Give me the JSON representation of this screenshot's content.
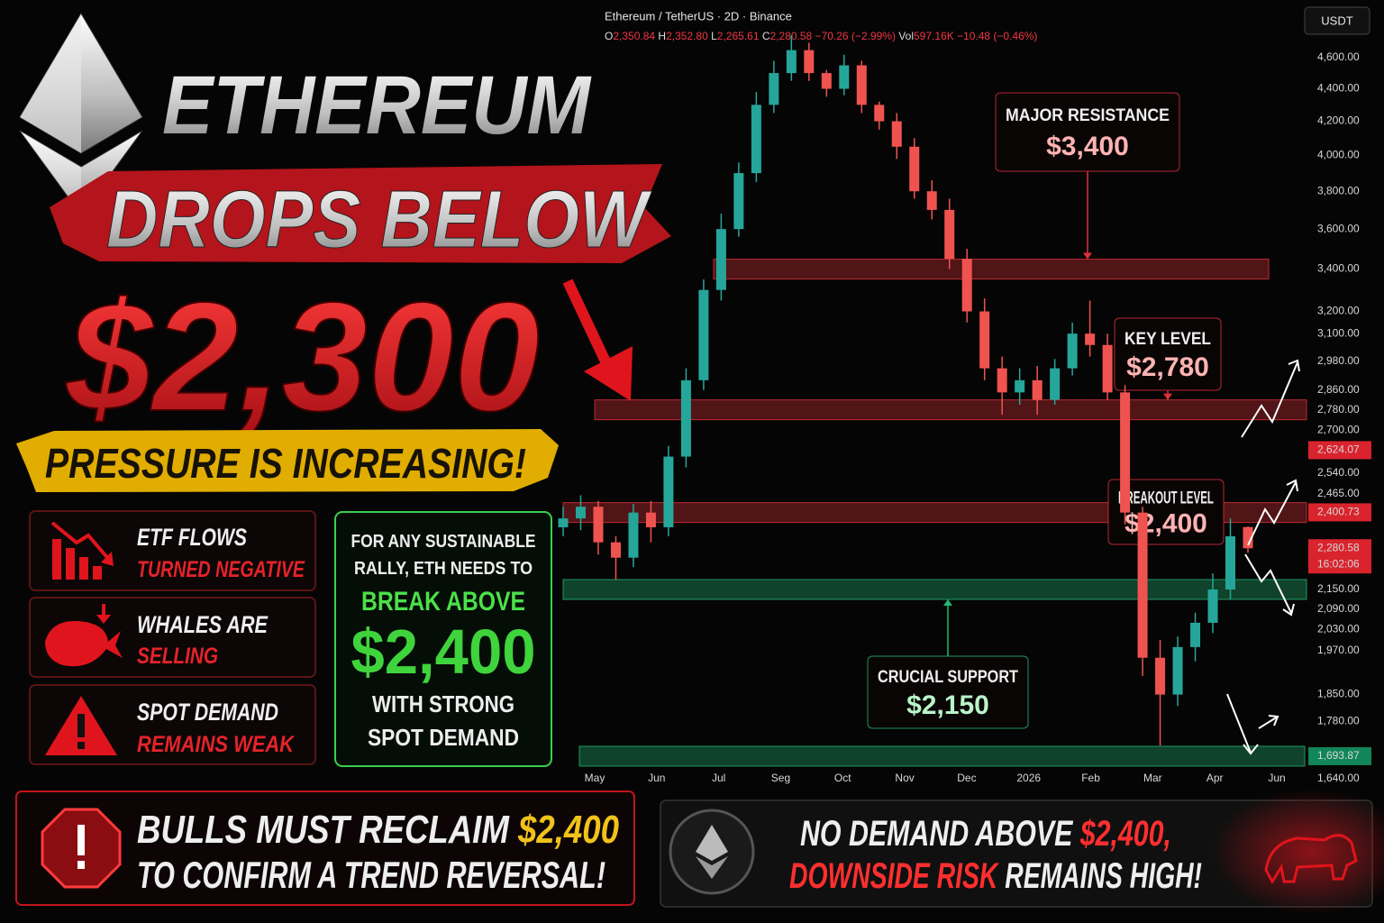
{
  "header": {
    "title_line1": "ETHEREUM",
    "title_line2": "DROPS BELOW",
    "price": "$2,300",
    "tagline": "PRESSURE IS INCREASING!"
  },
  "cards": [
    {
      "line1": "ETF FLOWS",
      "line2": "TURNED NEGATIVE"
    },
    {
      "line1": "WHALES ARE",
      "line2": "SELLING"
    },
    {
      "line1": "SPOT DEMAND",
      "line2": "REMAINS WEAK"
    }
  ],
  "callout": {
    "line1": "FOR ANY SUSTAINABLE",
    "line2": "RALLY, ETH NEEDS TO",
    "line3": "BREAK ABOVE",
    "price": "$2,400",
    "line4": "WITH STRONG",
    "line5": "SPOT DEMAND"
  },
  "banners": [
    {
      "text1": "BULLS MUST RECLAIM ",
      "highlight1": "$2,400",
      "text2": "TO CONFIRM A TREND REVERSAL!"
    },
    {
      "text1": "NO DEMAND ABOVE ",
      "highlight1": "$2,400,",
      "highlight2": "DOWNSIDE RISK",
      "text2": " REMAINS HIGH!"
    }
  ],
  "chart_data": {
    "type": "candlestick",
    "symbol": "Ethereum / TetherUS · 2D · Binance",
    "ohlc_header": [
      {
        "text": "O",
        "color": "#dddddd"
      },
      {
        "text": "2,350.84 ",
        "color": "#f23645"
      },
      {
        "text": "H",
        "color": "#dddddd"
      },
      {
        "text": "2,352.80 ",
        "color": "#f23645"
      },
      {
        "text": "L",
        "color": "#dddddd"
      },
      {
        "text": "2,265.61 ",
        "color": "#f23645"
      },
      {
        "text": "C",
        "color": "#dddddd"
      },
      {
        "text": "2,280.58 −70.26 (−2.99%) ",
        "color": "#f23645"
      },
      {
        "text": "Vol",
        "color": "#dddddd"
      },
      {
        "text": "597.16K −10.48 (−0.46%)",
        "color": "#f23645"
      }
    ],
    "currency": "USDT",
    "x_labels": [
      "May",
      "Jun",
      "Jul",
      "Seg",
      "Oct",
      "Nov",
      "Dec",
      "2026",
      "Feb",
      "Mar",
      "Apr",
      "Jun"
    ],
    "yscale": "log",
    "ylim": [
      1640,
      4800
    ],
    "yticks": [
      {
        "value": 4600,
        "label": "4,600.00"
      },
      {
        "value": 4400,
        "label": "4,400.00"
      },
      {
        "value": 4200,
        "label": "4,200.00"
      },
      {
        "value": 4000,
        "label": "4,000.00"
      },
      {
        "value": 3800,
        "label": "3,800.00"
      },
      {
        "value": 3600,
        "label": "3,600.00"
      },
      {
        "value": 3400,
        "label": "3,400.00"
      },
      {
        "value": 3200,
        "label": "3,200.00"
      },
      {
        "value": 3100,
        "label": "3,100.00"
      },
      {
        "value": 2980,
        "label": "2,980.00"
      },
      {
        "value": 2860,
        "label": "2,860.00"
      },
      {
        "value": 2780,
        "label": "2,780.00"
      },
      {
        "value": 2700,
        "label": "2,700.00"
      },
      {
        "value": 2540,
        "label": "2,540.00"
      },
      {
        "value": 2465,
        "label": "2,465.00"
      },
      {
        "value": 2150,
        "label": "2,150.00"
      },
      {
        "value": 2090,
        "label": "2,090.00"
      },
      {
        "value": 2030,
        "label": "2,030.00"
      },
      {
        "value": 1970,
        "label": "1,970.00"
      },
      {
        "value": 1850,
        "label": "1,850.00"
      },
      {
        "value": 1780,
        "label": "1,780.00"
      },
      {
        "value": 1640,
        "label": "1,640.00"
      }
    ],
    "price_labels": [
      {
        "value": 2624.07,
        "label": "2,624.07",
        "color": "#d9232d"
      },
      {
        "value": 2400.73,
        "label": "2,400.73",
        "color": "#d9232d"
      },
      {
        "value": 2280.58,
        "label": "2,280.58",
        "color": "#d9232d"
      },
      {
        "value": 1693.87,
        "label": "1,693.87",
        "color": "#12855a"
      }
    ],
    "countdown": "16:02:06",
    "up_color": "#26a69a",
    "down_color": "#ef5350",
    "open": [
      2350,
      2380,
      2420,
      2300,
      2250,
      2400,
      2350,
      2600,
      2900,
      3300,
      3600,
      3900,
      4300,
      4500,
      4650,
      4500,
      4400,
      4550,
      4300,
      4200,
      4050,
      3800,
      3700,
      3450,
      3200,
      2950,
      2850,
      2900,
      2820,
      2950,
      3100,
      3050,
      2850,
      2400,
      1950,
      1850,
      1980,
      2050,
      2150,
      2350.84
    ],
    "high": [
      2420,
      2460,
      2440,
      2320,
      2430,
      2440,
      2640,
      2950,
      3350,
      3680,
      3960,
      4380,
      4580,
      4750,
      4700,
      4520,
      4620,
      4580,
      4320,
      4250,
      4100,
      3860,
      3760,
      3500,
      3260,
      3000,
      2950,
      2960,
      2990,
      3150,
      3250,
      3100,
      2880,
      2420,
      2000,
      2010,
      2080,
      2200,
      2380,
      2352.8
    ],
    "low": [
      2320,
      2340,
      2260,
      2180,
      2220,
      2300,
      2320,
      2560,
      2860,
      3250,
      3560,
      3850,
      4250,
      4450,
      4450,
      4350,
      4360,
      4250,
      4150,
      3980,
      3760,
      3650,
      3400,
      3150,
      2900,
      2760,
      2800,
      2760,
      2800,
      2920,
      3000,
      2820,
      2360,
      1900,
      1720,
      1820,
      1940,
      2020,
      2120,
      2265.61
    ],
    "close": [
      2380,
      2420,
      2300,
      2250,
      2400,
      2350,
      2600,
      2900,
      3300,
      3600,
      3900,
      4300,
      4500,
      4650,
      4500,
      4400,
      4550,
      4300,
      4200,
      4050,
      3800,
      3700,
      3450,
      3200,
      2950,
      2850,
      2900,
      2820,
      2950,
      3100,
      3050,
      2850,
      2400,
      1950,
      1850,
      1980,
      2050,
      2150,
      2320,
      2280.58
    ],
    "zones": [
      {
        "title": "MAJOR RESISTANCE",
        "label": "$3,400",
        "value": 3400,
        "color": "#e0313a"
      },
      {
        "title": "KEY LEVEL",
        "label": "$2,780",
        "value": 2780,
        "color": "#e0313a"
      },
      {
        "title": "BREAKOUT LEVEL",
        "label": "$2,400",
        "value": 2400,
        "color": "#e0313a"
      },
      {
        "title": "CRUCIAL SUPPORT",
        "label": "$2,150",
        "value": 2150,
        "color": "#22b872"
      },
      {
        "value": 1693.87,
        "color": "#22b872"
      }
    ]
  }
}
